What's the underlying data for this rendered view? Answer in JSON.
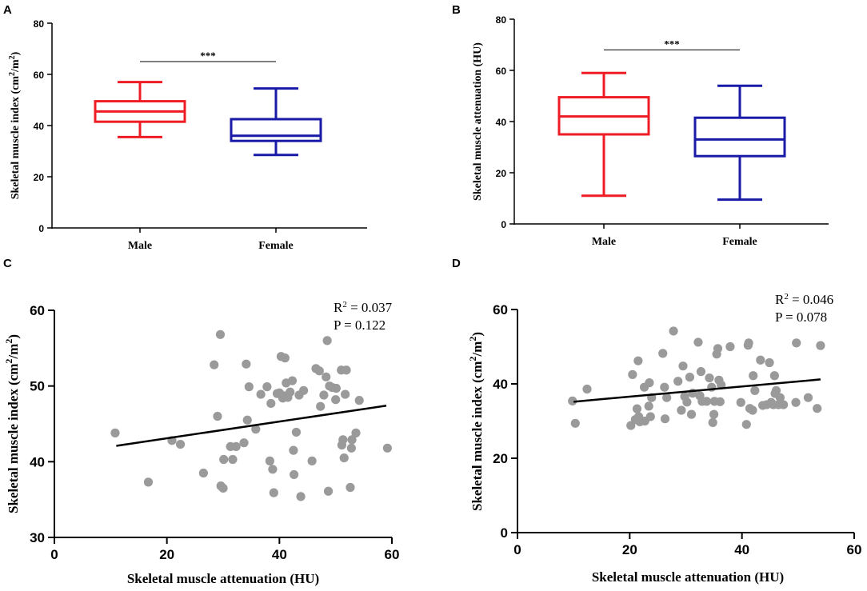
{
  "colors": {
    "male": "#ee1c24",
    "female": "#1a1aa8",
    "point": "#9a9a9a",
    "axis": "#000000",
    "fit": "#000000"
  },
  "chart_data": [
    {
      "panel": "A",
      "type": "box",
      "xlabel": "",
      "ylabel_parts": [
        "Skeletal muscle index (cm",
        "2",
        "/m",
        "2",
        ")"
      ],
      "ylim": [
        0,
        80
      ],
      "yticks": [
        0,
        20,
        40,
        60,
        80
      ],
      "categories": [
        "Male",
        "Female"
      ],
      "boxes": [
        {
          "name": "Male",
          "min": 35.5,
          "q1": 41.5,
          "median": 45.5,
          "q3": 49.5,
          "max": 57,
          "color": "#ee1c24"
        },
        {
          "name": "Female",
          "min": 28.5,
          "q1": 34,
          "median": 36,
          "q3": 42.5,
          "max": 54.5,
          "color": "#1a1aa8"
        }
      ],
      "significance": {
        "label": "***",
        "y": 65
      }
    },
    {
      "panel": "B",
      "type": "box",
      "xlabel": "",
      "ylabel_parts": [
        "Skeletal muscle attenuation (HU)"
      ],
      "ylim": [
        0,
        80
      ],
      "yticks": [
        0,
        20,
        40,
        60,
        80
      ],
      "categories": [
        "Male",
        "Female"
      ],
      "boxes": [
        {
          "name": "Male",
          "min": 11,
          "q1": 35,
          "median": 42,
          "q3": 49.5,
          "max": 59,
          "color": "#ee1c24"
        },
        {
          "name": "Female",
          "min": 9.5,
          "q1": 26.5,
          "median": 33,
          "q3": 41.5,
          "max": 54,
          "color": "#1a1aa8"
        }
      ],
      "significance": {
        "label": "***",
        "y": 68
      }
    },
    {
      "panel": "C",
      "type": "scatter",
      "xlabel": "Skeletal muscle attenuation (HU)",
      "ylabel_parts": [
        "Skeletal muscle index (cm",
        "2",
        "/m",
        "2",
        ")"
      ],
      "xlim": [
        0,
        60
      ],
      "xticks": [
        0,
        20,
        40,
        60
      ],
      "ylim": [
        30,
        60
      ],
      "yticks": [
        30,
        40,
        50,
        60
      ],
      "fit": {
        "x": [
          11,
          59
        ],
        "y": [
          42.1,
          47.4
        ]
      },
      "stats": {
        "r2_prefix": "R",
        "r2_sup": "2",
        "r2_value": " = 0.037",
        "p_text": "P =  0.122"
      },
      "points": [
        [
          10.8,
          43.8
        ],
        [
          16.7,
          37.3
        ],
        [
          20.9,
          42.8
        ],
        [
          22.4,
          42.3
        ],
        [
          26.5,
          38.5
        ],
        [
          28.4,
          52.8
        ],
        [
          29.0,
          46.0
        ],
        [
          29.5,
          56.8
        ],
        [
          29.6,
          36.8
        ],
        [
          30.0,
          36.5
        ],
        [
          30.1,
          40.3
        ],
        [
          31.3,
          42.0
        ],
        [
          31.7,
          40.3
        ],
        [
          32.3,
          42.0
        ],
        [
          33.7,
          42.5
        ],
        [
          34.1,
          52.9
        ],
        [
          34.3,
          45.5
        ],
        [
          34.6,
          49.9
        ],
        [
          35.8,
          44.3
        ],
        [
          36.7,
          48.9
        ],
        [
          37.8,
          49.9
        ],
        [
          38.3,
          40.1
        ],
        [
          38.5,
          47.7
        ],
        [
          38.8,
          39.0
        ],
        [
          39.0,
          35.9
        ],
        [
          39.6,
          49.0
        ],
        [
          40.0,
          49.1
        ],
        [
          40.3,
          53.9
        ],
        [
          40.6,
          48.4
        ],
        [
          40.9,
          48.7
        ],
        [
          41.0,
          53.7
        ],
        [
          41.2,
          50.4
        ],
        [
          41.5,
          48.5
        ],
        [
          41.9,
          49.2
        ],
        [
          42.3,
          50.7
        ],
        [
          42.5,
          41.5
        ],
        [
          42.6,
          38.3
        ],
        [
          43.0,
          43.9
        ],
        [
          43.5,
          48.8
        ],
        [
          43.8,
          35.4
        ],
        [
          44.3,
          49.4
        ],
        [
          45.8,
          40.1
        ],
        [
          46.5,
          52.3
        ],
        [
          47.1,
          52.0
        ],
        [
          47.3,
          47.3
        ],
        [
          47.9,
          48.8
        ],
        [
          48.3,
          51.2
        ],
        [
          48.5,
          56.0
        ],
        [
          48.7,
          36.1
        ],
        [
          48.9,
          50.0
        ],
        [
          49.4,
          49.8
        ],
        [
          50.0,
          48.2
        ],
        [
          50.1,
          49.7
        ],
        [
          51.0,
          52.1
        ],
        [
          51.1,
          42.2
        ],
        [
          51.3,
          42.9
        ],
        [
          51.5,
          40.5
        ],
        [
          51.7,
          48.9
        ],
        [
          51.9,
          52.1
        ],
        [
          52.6,
          36.6
        ],
        [
          52.8,
          41.8
        ],
        [
          52.9,
          42.9
        ],
        [
          53.6,
          43.8
        ],
        [
          54.2,
          48.1
        ],
        [
          59.2,
          41.8
        ]
      ]
    },
    {
      "panel": "D",
      "type": "scatter",
      "xlabel": "Skeletal muscle attenuation (HU)",
      "ylabel_parts": [
        "Skeletal muscle index (cm",
        "2",
        "/m",
        "2",
        ")"
      ],
      "xlim": [
        0,
        60
      ],
      "xticks": [
        0,
        20,
        40,
        60
      ],
      "ylim": [
        0,
        60
      ],
      "yticks": [
        0,
        20,
        40,
        60
      ],
      "fit": {
        "x": [
          10,
          54
        ],
        "y": [
          35.2,
          41.2
        ]
      },
      "stats": {
        "r2_prefix": "R",
        "r2_sup": "2",
        "r2_value": " = 0.046",
        "p_text": "P = 0.078"
      },
      "points": [
        [
          9.8,
          35.4
        ],
        [
          10.3,
          29.4
        ],
        [
          12.4,
          38.6
        ],
        [
          20.2,
          28.8
        ],
        [
          20.5,
          42.5
        ],
        [
          21.0,
          30.4
        ],
        [
          21.3,
          33.3
        ],
        [
          21.5,
          46.2
        ],
        [
          21.6,
          31.2
        ],
        [
          21.8,
          29.8
        ],
        [
          22.6,
          39.1
        ],
        [
          22.7,
          30.0
        ],
        [
          23.4,
          34.0
        ],
        [
          23.5,
          40.3
        ],
        [
          23.7,
          31.2
        ],
        [
          23.9,
          36.3
        ],
        [
          25.9,
          48.2
        ],
        [
          26.2,
          39.1
        ],
        [
          26.3,
          30.6
        ],
        [
          26.6,
          36.3
        ],
        [
          27.8,
          54.2
        ],
        [
          28.6,
          40.7
        ],
        [
          29.2,
          32.9
        ],
        [
          29.5,
          44.8
        ],
        [
          29.8,
          36.6
        ],
        [
          30.2,
          35.1
        ],
        [
          30.7,
          41.8
        ],
        [
          31.0,
          31.8
        ],
        [
          31.2,
          37.5
        ],
        [
          32.2,
          51.2
        ],
        [
          32.5,
          36.8
        ],
        [
          32.7,
          43.3
        ],
        [
          32.9,
          35.3
        ],
        [
          33.7,
          35.3
        ],
        [
          34.2,
          41.6
        ],
        [
          34.6,
          39.1
        ],
        [
          34.8,
          29.6
        ],
        [
          35.0,
          31.8
        ],
        [
          35.1,
          35.3
        ],
        [
          35.5,
          48.0
        ],
        [
          35.7,
          49.5
        ],
        [
          35.9,
          41.0
        ],
        [
          36.1,
          35.2
        ],
        [
          36.3,
          39.7
        ],
        [
          37.9,
          50.0
        ],
        [
          39.8,
          35.0
        ],
        [
          40.8,
          29.1
        ],
        [
          41.1,
          50.4
        ],
        [
          41.2,
          51.0
        ],
        [
          41.4,
          33.4
        ],
        [
          41.9,
          32.9
        ],
        [
          42.0,
          42.2
        ],
        [
          42.3,
          38.2
        ],
        [
          43.3,
          46.4
        ],
        [
          43.7,
          34.2
        ],
        [
          44.4,
          34.4
        ],
        [
          44.9,
          45.7
        ],
        [
          45.2,
          35.0
        ],
        [
          45.6,
          34.4
        ],
        [
          45.8,
          42.2
        ],
        [
          45.9,
          37.4
        ],
        [
          46.1,
          38.2
        ],
        [
          46.5,
          34.4
        ],
        [
          46.8,
          36.3
        ],
        [
          47.4,
          34.4
        ],
        [
          49.6,
          35.0
        ],
        [
          49.7,
          51.0
        ],
        [
          51.8,
          36.3
        ],
        [
          53.4,
          33.4
        ],
        [
          54.0,
          50.3
        ]
      ]
    }
  ]
}
